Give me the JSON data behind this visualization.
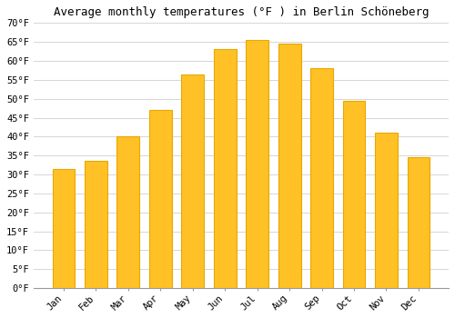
{
  "title": "Average monthly temperatures (°F ) in Berlin Schöneberg",
  "months": [
    "Jan",
    "Feb",
    "Mar",
    "Apr",
    "May",
    "Jun",
    "Jul",
    "Aug",
    "Sep",
    "Oct",
    "Nov",
    "Dec"
  ],
  "values": [
    31.5,
    33.5,
    40.0,
    47.0,
    56.5,
    63.0,
    65.5,
    64.5,
    58.0,
    49.5,
    41.0,
    34.5
  ],
  "bar_color": "#FFC125",
  "bar_edge_color": "#E8A800",
  "ylim": [
    0,
    70
  ],
  "yticks": [
    0,
    5,
    10,
    15,
    20,
    25,
    30,
    35,
    40,
    45,
    50,
    55,
    60,
    65,
    70
  ],
  "background_color": "#FFFFFF",
  "grid_color": "#D0D0D0",
  "title_fontsize": 9,
  "tick_fontsize": 7.5,
  "bar_width": 0.7
}
